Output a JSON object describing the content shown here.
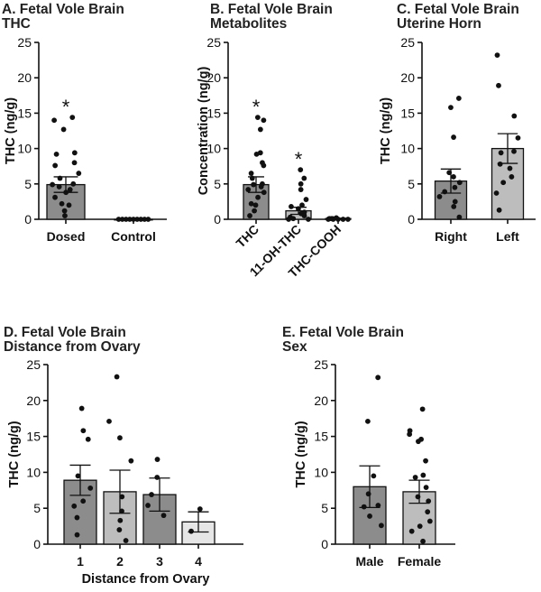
{
  "chart_data": [
    {
      "id": "A",
      "type": "bar",
      "title": [
        "A. Fetal Vole Brain",
        "THC"
      ],
      "ylabel": "THC (ng/g)",
      "xlabel": "",
      "ylim": [
        0,
        25
      ],
      "yticks": [
        0,
        5,
        10,
        15,
        20,
        25
      ],
      "categories": [
        "Dosed",
        "Control"
      ],
      "values": [
        4.9,
        0
      ],
      "sem": [
        1.1,
        0
      ],
      "bar_colors": [
        "#8c8c8c",
        "#bdbdbd"
      ],
      "significance": [
        "*",
        ""
      ],
      "points": [
        [
          14.4,
          14.0,
          12.7,
          9.4,
          9.2,
          8.0,
          7.6,
          6.5,
          5.8,
          5.0,
          4.9,
          4.6,
          4.2,
          3.8,
          3.1,
          2.2,
          2.0,
          1.2,
          0.5
        ],
        [
          0,
          0,
          0,
          0,
          0,
          0,
          0,
          0,
          0
        ]
      ]
    },
    {
      "id": "B",
      "type": "bar",
      "title": [
        "B. Fetal Vole Brain",
        "Metabolites"
      ],
      "ylabel": "Concentration (ng/g)",
      "xlabel": "",
      "ylim": [
        0,
        25
      ],
      "yticks": [
        0,
        5,
        10,
        15,
        20,
        25
      ],
      "categories": [
        "THC",
        "11-OH-THC",
        "THC-COOH"
      ],
      "rotated_labels": true,
      "values": [
        4.9,
        1.2,
        0.1
      ],
      "sem": [
        1.1,
        0.5,
        0.05
      ],
      "bar_colors": [
        "#8c8c8c",
        "#bdbdbd",
        "#e6e6e6"
      ],
      "significance": [
        "*",
        "*",
        ""
      ],
      "points": [
        [
          14.4,
          14.0,
          12.7,
          9.4,
          9.2,
          8.0,
          7.6,
          6.5,
          5.8,
          5.0,
          4.9,
          4.6,
          4.2,
          3.8,
          3.1,
          2.2,
          2.0,
          1.2,
          0.5
        ],
        [
          7.0,
          5.8,
          5.0,
          4.2,
          2.8,
          2.0,
          1.8,
          1.5,
          1.0,
          0.8,
          0.5,
          0.3,
          0.1,
          0.0,
          0.0
        ],
        [
          0.2,
          0.1,
          0.1,
          0.1,
          0.0,
          0.0,
          0.0,
          0.0,
          0.0
        ]
      ]
    },
    {
      "id": "C",
      "type": "bar",
      "title": [
        "C. Fetal Vole Brain",
        "Uterine Horn"
      ],
      "ylabel": "THC (ng/g)",
      "xlabel": "",
      "ylim": [
        0,
        25
      ],
      "yticks": [
        0,
        5,
        10,
        15,
        20,
        25
      ],
      "categories": [
        "Right",
        "Left"
      ],
      "values": [
        5.4,
        10.0
      ],
      "sem": [
        1.7,
        2.1
      ],
      "bar_colors": [
        "#8c8c8c",
        "#bdbdbd"
      ],
      "significance": [
        "",
        ""
      ],
      "points": [
        [
          17.1,
          15.8,
          11.6,
          6.6,
          6.0,
          5.2,
          4.5,
          3.9,
          3.2,
          2.5,
          1.8,
          0.3
        ],
        [
          23.2,
          18.9,
          14.6,
          11.5,
          9.6,
          9.4,
          7.8,
          7.2,
          6.0,
          5.2,
          3.7,
          1.3
        ]
      ]
    },
    {
      "id": "D",
      "type": "bar",
      "title": [
        "D. Fetal Vole Brain",
        "Distance from Ovary"
      ],
      "ylabel": "THC (ng/g)",
      "xlabel": "Distance from Ovary",
      "ylim": [
        0,
        25
      ],
      "yticks": [
        0,
        5,
        10,
        15,
        20,
        25
      ],
      "categories": [
        "1",
        "2",
        "3",
        "4"
      ],
      "values": [
        8.9,
        7.3,
        6.9,
        3.1
      ],
      "sem": [
        2.1,
        3.0,
        2.3,
        1.4
      ],
      "bar_colors": [
        "#8c8c8c",
        "#bdbdbd",
        "#8c8c8c",
        "#e6e6e6"
      ],
      "significance": [
        "",
        "",
        "",
        ""
      ],
      "points": [
        [
          18.9,
          15.8,
          14.6,
          9.5,
          7.8,
          6.0,
          5.3,
          3.7,
          1.3
        ],
        [
          23.3,
          17.1,
          14.8,
          11.6,
          6.6,
          4.6,
          3.3,
          2.0,
          0.5
        ],
        [
          11.8,
          9.3,
          6.9,
          5.4,
          4.0
        ],
        [
          4.9,
          1.8
        ]
      ]
    },
    {
      "id": "E",
      "type": "bar",
      "title": [
        "E. Fetal Vole Brain",
        "Sex"
      ],
      "ylabel": "THC (ng/g)",
      "xlabel": "",
      "ylim": [
        0,
        25
      ],
      "yticks": [
        0,
        5,
        10,
        15,
        20,
        25
      ],
      "categories": [
        "Male",
        "Female"
      ],
      "values": [
        8.0,
        7.3
      ],
      "sem": [
        2.9,
        1.6
      ],
      "bar_colors": [
        "#8c8c8c",
        "#bdbdbd"
      ],
      "significance": [
        "",
        ""
      ],
      "points": [
        [
          23.2,
          17.1,
          9.5,
          7.0,
          5.4,
          5.2,
          3.9,
          2.6
        ],
        [
          18.8,
          15.8,
          15.3,
          14.6,
          14.3,
          11.6,
          9.6,
          9.3,
          7.9,
          6.6,
          6.0,
          4.5,
          3.2,
          2.5,
          1.8,
          0.4
        ]
      ]
    }
  ]
}
